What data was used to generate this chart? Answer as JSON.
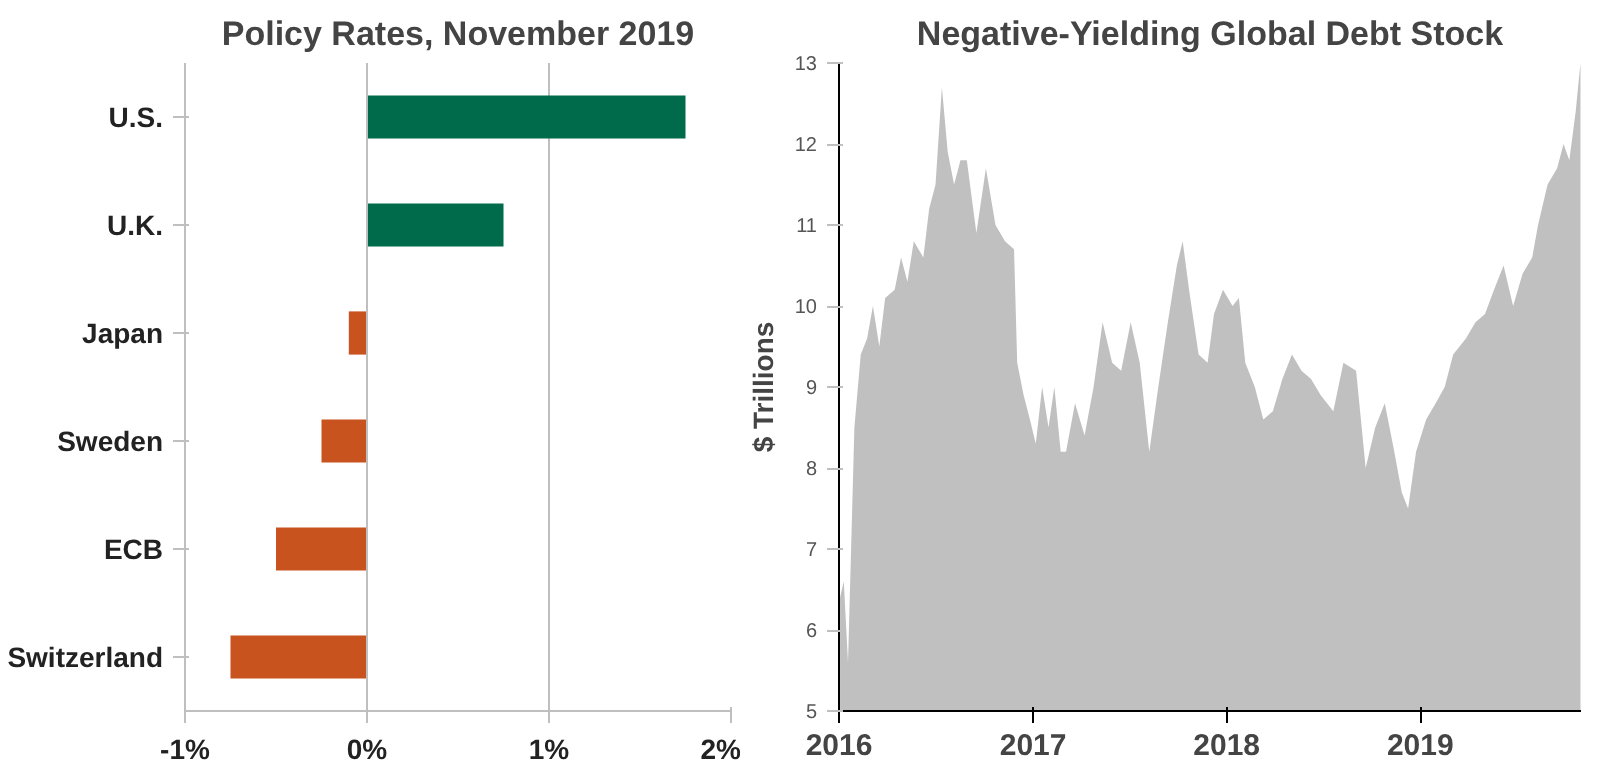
{
  "chart_data": [
    {
      "type": "bar",
      "title": "Policy Rates, November 2019",
      "orientation": "horizontal",
      "categories": [
        "U.S.",
        "U.K.",
        "Japan",
        "Sweden",
        "ECB",
        "Switzerland"
      ],
      "values": [
        1.75,
        0.75,
        -0.1,
        -0.25,
        -0.5,
        -0.75
      ],
      "colors": [
        "#006b4a",
        "#006b4a",
        "#c8531f",
        "#c8531f",
        "#c8531f",
        "#c8531f"
      ],
      "xlim": [
        -1,
        2
      ],
      "xticks": [
        {
          "value": -1,
          "label": "-1%"
        },
        {
          "value": 0,
          "label": "0%"
        },
        {
          "value": 1,
          "label": "1%"
        },
        {
          "value": 2,
          "label": "2%"
        }
      ],
      "grid": "x"
    },
    {
      "type": "area",
      "title": "Negative-Yielding Global Debt Stock",
      "ylabel": "$ Trillions",
      "color": "#c0c0c0",
      "ylim": [
        5,
        13
      ],
      "yticks": [
        5,
        6,
        7,
        8,
        9,
        10,
        11,
        12,
        13
      ],
      "xlim": [
        "2016-01-01",
        "2019-10-31"
      ],
      "xticks": [
        {
          "value": "2016-01-01",
          "label": "2016"
        },
        {
          "value": "2017-01-01",
          "label": "2017"
        },
        {
          "value": "2018-01-01",
          "label": "2018"
        },
        {
          "value": "2019-01-01",
          "label": "2019"
        }
      ],
      "grid": false,
      "x": [
        "2016-01-03",
        "2016-01-10",
        "2016-01-18",
        "2016-01-30",
        "2016-02-11",
        "2016-02-23",
        "2016-03-05",
        "2016-03-17",
        "2016-03-28",
        "2016-04-15",
        "2016-04-27",
        "2016-05-09",
        "2016-05-21",
        "2016-06-08",
        "2016-06-19",
        "2016-07-01",
        "2016-07-13",
        "2016-07-24",
        "2016-08-05",
        "2016-08-17",
        "2016-08-29",
        "2016-09-16",
        "2016-10-04",
        "2016-10-22",
        "2016-11-09",
        "2016-11-26",
        "2016-12-02",
        "2016-12-14",
        "2016-12-26",
        "2017-01-06",
        "2017-01-18",
        "2017-01-30",
        "2017-02-10",
        "2017-02-22",
        "2017-03-04",
        "2017-03-21",
        "2017-04-08",
        "2017-04-25",
        "2017-05-12",
        "2017-05-30",
        "2017-06-16",
        "2017-07-04",
        "2017-07-21",
        "2017-08-08",
        "2017-08-25",
        "2017-09-12",
        "2017-09-29",
        "2017-10-10",
        "2017-10-22",
        "2017-11-09",
        "2017-11-26",
        "2017-12-08",
        "2017-12-25",
        "2018-01-12",
        "2018-01-24",
        "2018-02-05",
        "2018-02-23",
        "2018-03-11",
        "2018-03-29",
        "2018-04-16",
        "2018-05-04",
        "2018-05-22",
        "2018-06-09",
        "2018-06-27",
        "2018-07-21",
        "2018-08-09",
        "2018-09-02",
        "2018-09-20",
        "2018-10-08",
        "2018-10-26",
        "2018-11-13",
        "2018-11-27",
        "2018-12-09",
        "2018-12-24",
        "2019-01-12",
        "2019-01-30",
        "2019-02-16",
        "2019-03-04",
        "2019-03-28",
        "2019-04-15",
        "2019-05-03",
        "2019-05-20",
        "2019-06-07",
        "2019-06-25",
        "2019-07-13",
        "2019-07-31",
        "2019-08-11",
        "2019-08-29",
        "2019-09-16",
        "2019-09-28",
        "2019-10-09",
        "2019-10-21",
        "2019-10-30"
      ],
      "values": [
        6.4,
        6.6,
        5.6,
        8.5,
        9.4,
        9.6,
        10.0,
        9.5,
        10.1,
        10.2,
        10.6,
        10.3,
        10.8,
        10.6,
        11.2,
        11.5,
        12.7,
        11.9,
        11.5,
        11.8,
        11.8,
        10.9,
        11.7,
        11.0,
        10.8,
        10.7,
        9.3,
        8.9,
        8.6,
        8.3,
        9.0,
        8.5,
        9.0,
        8.2,
        8.2,
        8.8,
        8.4,
        9.0,
        9.8,
        9.3,
        9.2,
        9.8,
        9.3,
        8.2,
        9.0,
        9.8,
        10.5,
        10.8,
        10.2,
        9.4,
        9.3,
        9.9,
        10.2,
        10.0,
        10.1,
        9.3,
        9.0,
        8.6,
        8.7,
        9.1,
        9.4,
        9.2,
        9.1,
        8.9,
        8.7,
        9.3,
        9.2,
        8.0,
        8.5,
        8.8,
        8.2,
        7.7,
        7.5,
        8.2,
        8.6,
        8.8,
        9.0,
        9.4,
        9.6,
        9.8,
        9.9,
        10.2,
        10.5,
        10.0,
        10.4,
        10.6,
        11.0,
        11.5,
        11.7,
        12.0,
        11.8,
        12.4,
        13.0
      ]
    }
  ]
}
